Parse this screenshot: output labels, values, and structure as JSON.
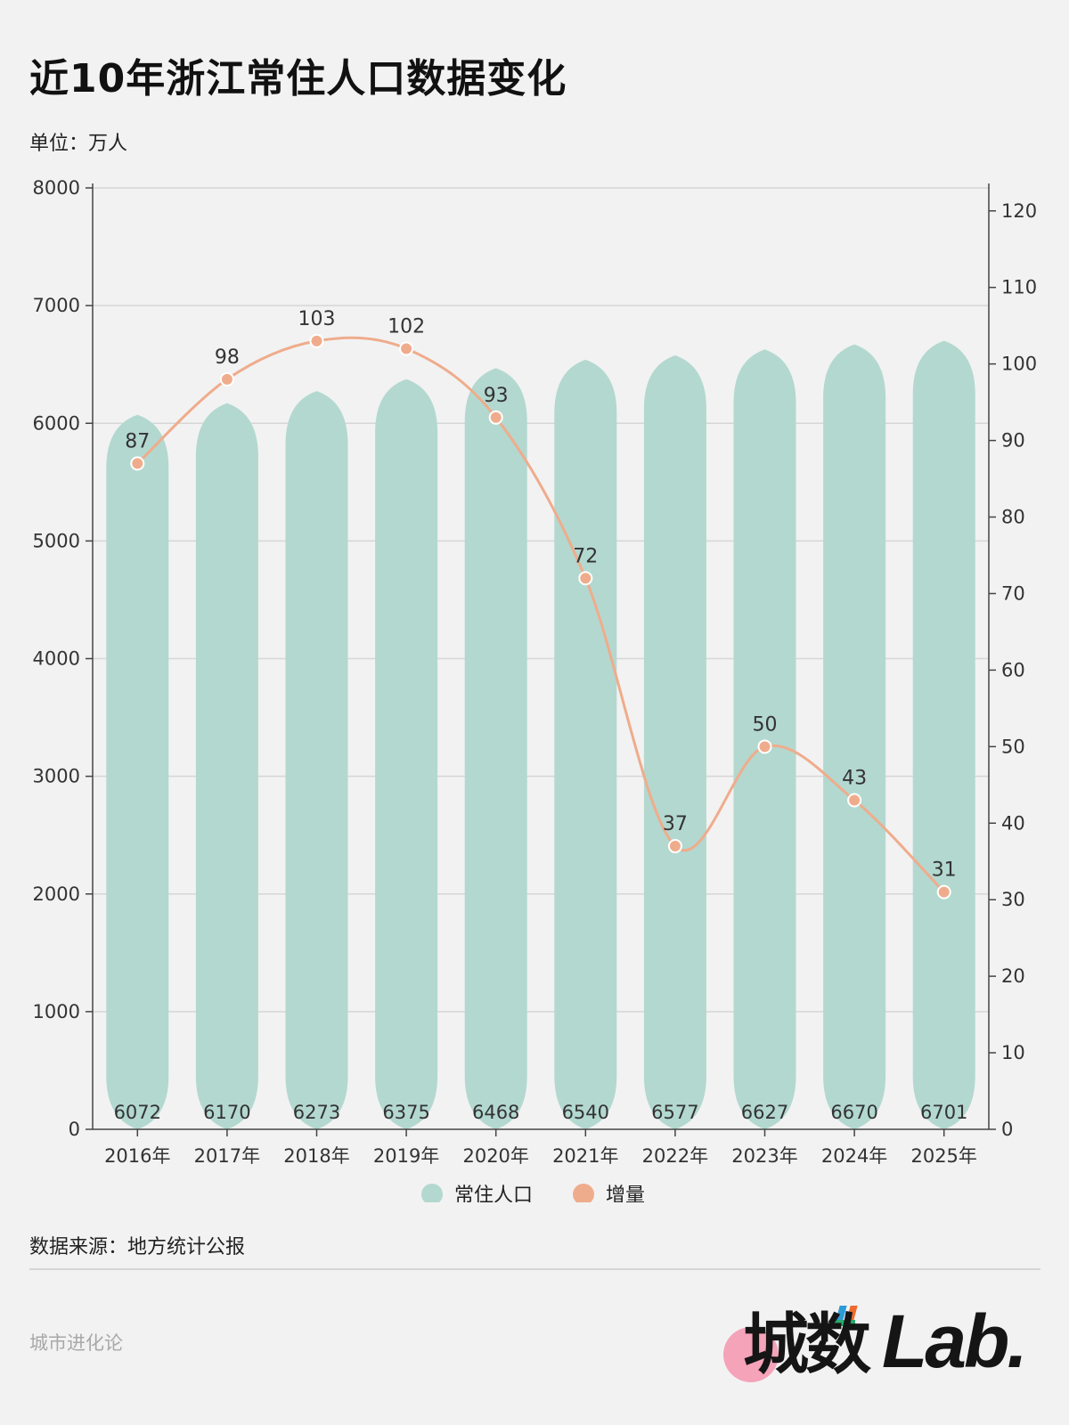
{
  "title": "近10年浙江常住人口数据变化",
  "unit": "单位：万人",
  "source": "数据来源：地方统计公报",
  "footer": {
    "left": "城市进化论",
    "logo_cn": "城数",
    "logo_en": "Lab."
  },
  "colors": {
    "bar": "#b3d8cf",
    "line": "#efac8c",
    "point_stroke": "#ffffff",
    "grid": "#d6d6d6",
    "axis": "#444444"
  },
  "chart_data": {
    "type": "bar+line",
    "categories": [
      "2016年",
      "2017年",
      "2018年",
      "2019年",
      "2020年",
      "2021年",
      "2022年",
      "2023年",
      "2024年",
      "2025年"
    ],
    "series": [
      {
        "name": "常住人口",
        "type": "bar",
        "axis": "left",
        "values": [
          6072,
          6170,
          6273,
          6375,
          6468,
          6540,
          6577,
          6627,
          6670,
          6701
        ]
      },
      {
        "name": "增量",
        "type": "line",
        "axis": "right",
        "values": [
          87,
          98,
          103,
          102,
          93,
          72,
          37,
          50,
          43,
          31
        ]
      }
    ],
    "y_left": {
      "min": 0,
      "max": 8000,
      "ticks": [
        0,
        1000,
        2000,
        3000,
        4000,
        5000,
        6000,
        7000,
        8000
      ]
    },
    "y_right": {
      "min": 0,
      "max": 123,
      "ticks": [
        0,
        10,
        20,
        30,
        40,
        50,
        60,
        70,
        80,
        90,
        100,
        110,
        120
      ]
    },
    "legend": [
      {
        "label": "常住人口",
        "color": "#b3d8cf"
      },
      {
        "label": "增量",
        "color": "#efac8c"
      }
    ],
    "legend_position": "bottom-center"
  }
}
